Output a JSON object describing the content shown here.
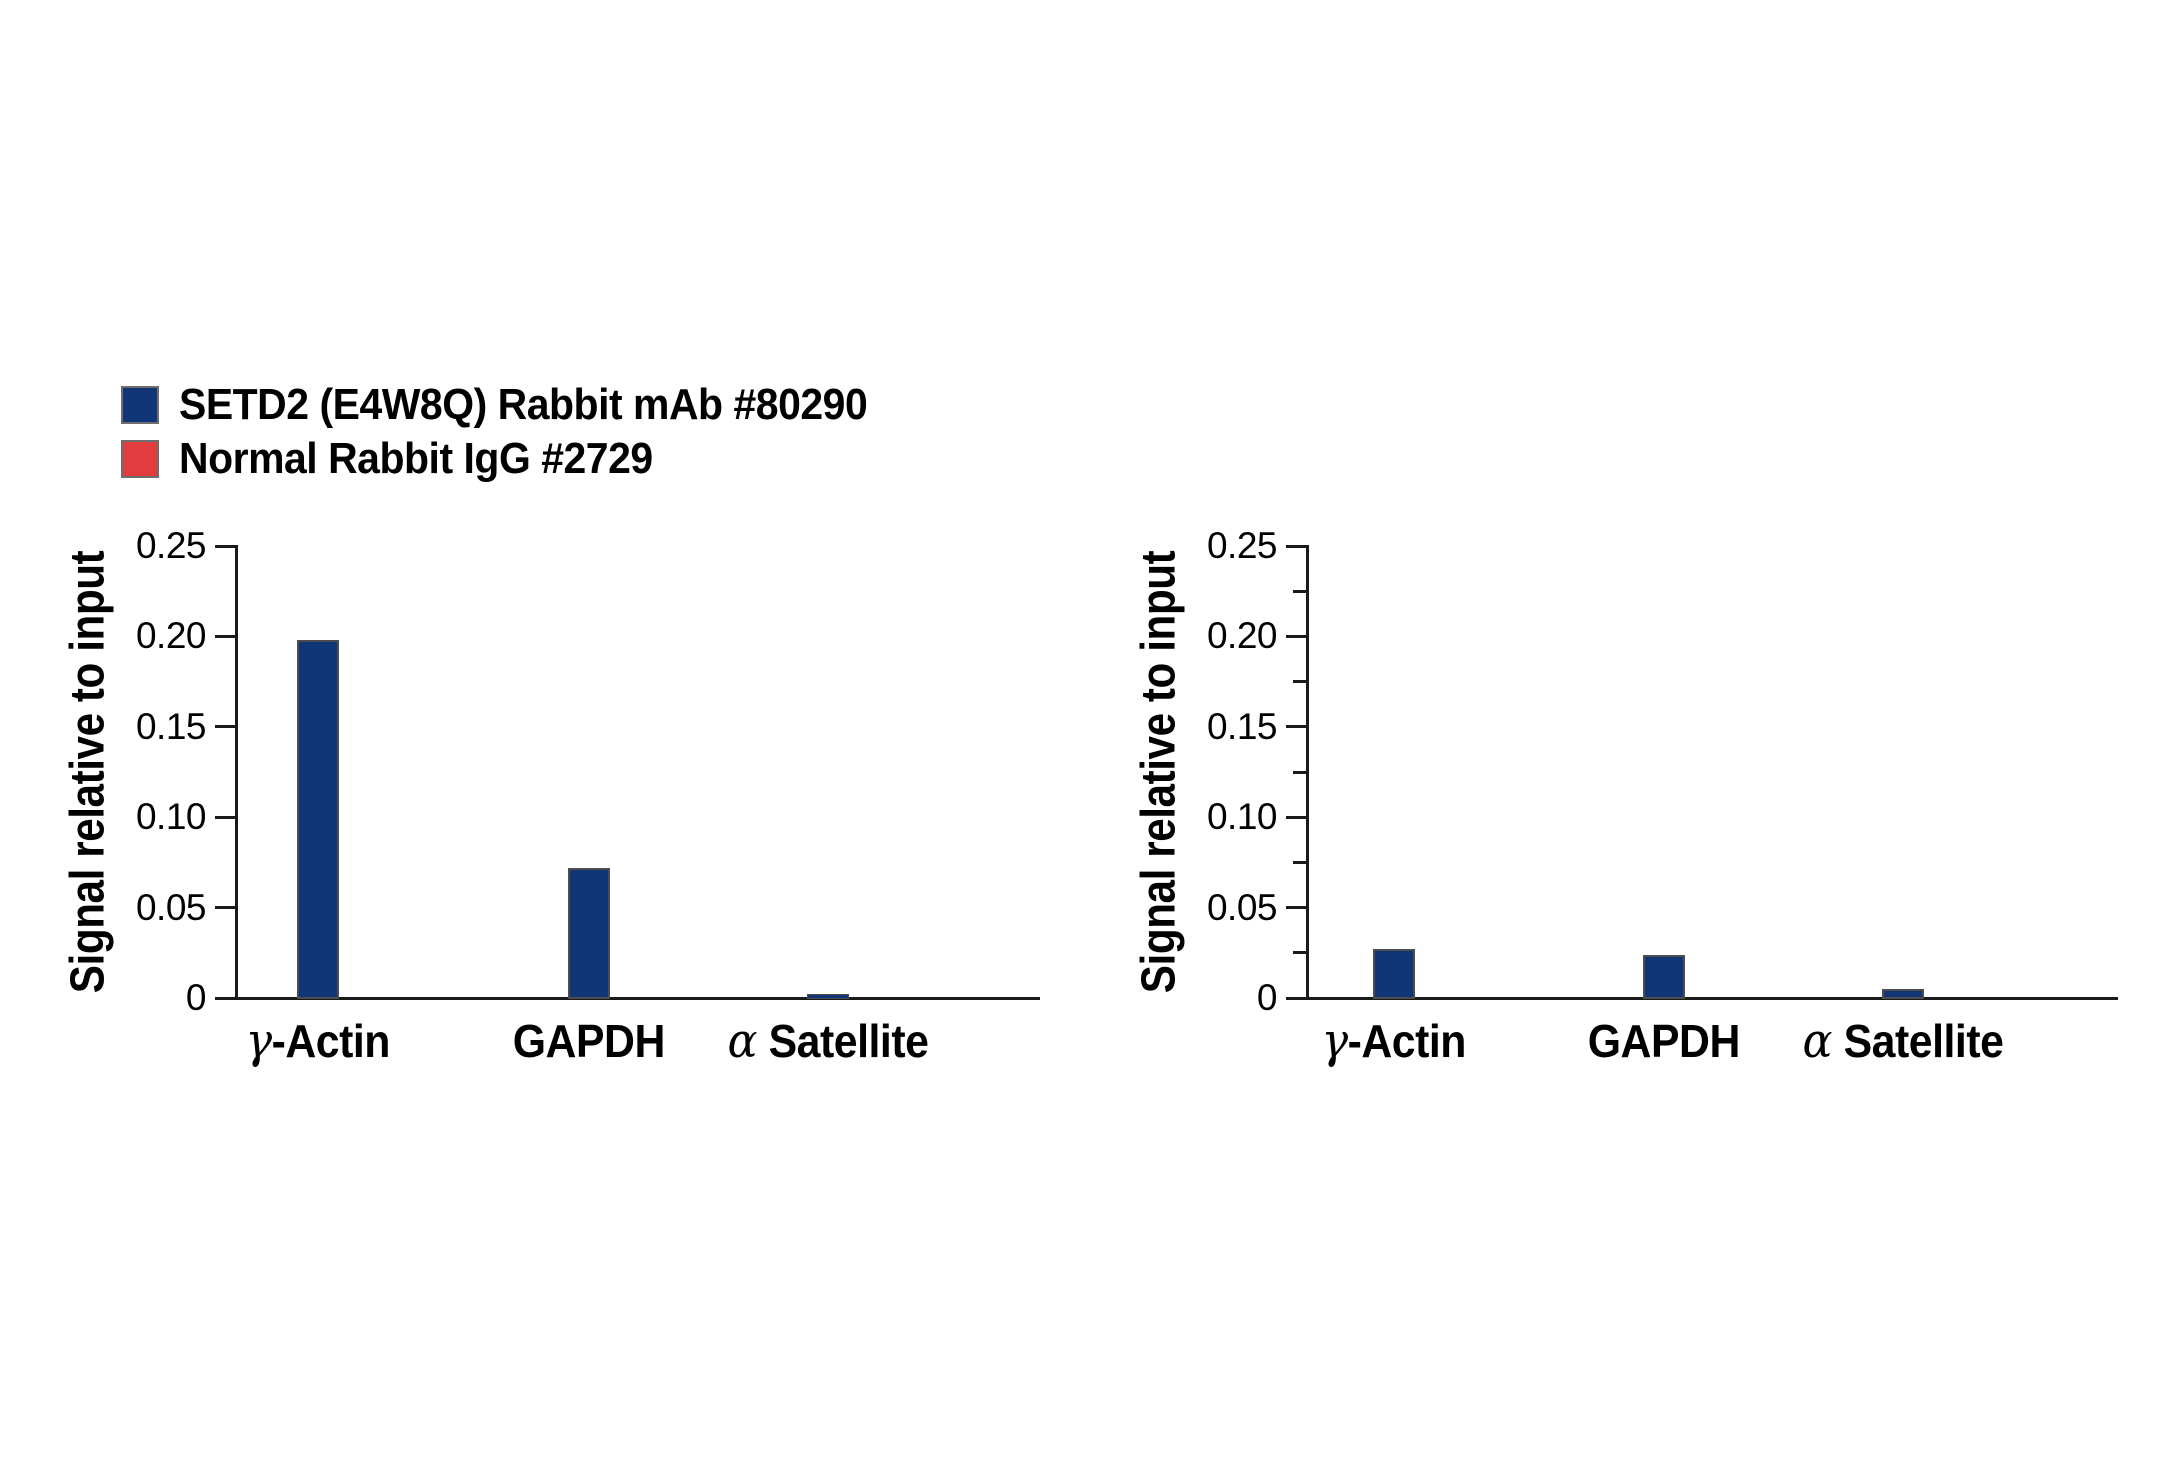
{
  "legend": {
    "items": [
      {
        "label": "SETD2 (E4W8Q) Rabbit mAb #80290",
        "color": "#113677"
      },
      {
        "label": "Normal Rabbit IgG #2729",
        "color": "#e23c3e"
      }
    ]
  },
  "chart_data": [
    {
      "type": "bar",
      "panel": "left",
      "ylabel": "Signal relative to input",
      "categories": [
        "γ-Actin",
        "GAPDH",
        "α Satellite"
      ],
      "series": [
        {
          "name": "SETD2 (E4W8Q) Rabbit mAb #80290",
          "color": "#113677",
          "values": [
            0.198,
            0.072,
            0.002
          ]
        }
      ],
      "ylim": [
        0,
        0.25
      ],
      "ytick_values": [
        0,
        0.05,
        0.1,
        0.15,
        0.2,
        0.25
      ],
      "ytick_labels": [
        "0",
        "0.05",
        "0.10",
        "0.15",
        "0.20",
        "0.25"
      ],
      "minor_tick_values": [],
      "grid": false,
      "legend_position": "top-left-of-figure"
    },
    {
      "type": "bar",
      "panel": "right",
      "ylabel": "Signal relative to input",
      "categories": [
        "γ-Actin",
        "GAPDH",
        "α Satellite"
      ],
      "series": [
        {
          "name": "SETD2 (E4W8Q) Rabbit mAb #80290",
          "color": "#113677",
          "values": [
            0.027,
            0.024,
            0.005
          ]
        }
      ],
      "ylim": [
        0,
        0.25
      ],
      "ytick_values": [
        0,
        0.05,
        0.1,
        0.15,
        0.2,
        0.25
      ],
      "ytick_labels": [
        "0",
        "0.05",
        "0.10",
        "0.15",
        "0.20",
        "0.25"
      ],
      "minor_tick_values": [
        0.025,
        0.075,
        0.125,
        0.175,
        0.225
      ],
      "grid": false,
      "legend_position": "top-left-of-figure"
    }
  ]
}
